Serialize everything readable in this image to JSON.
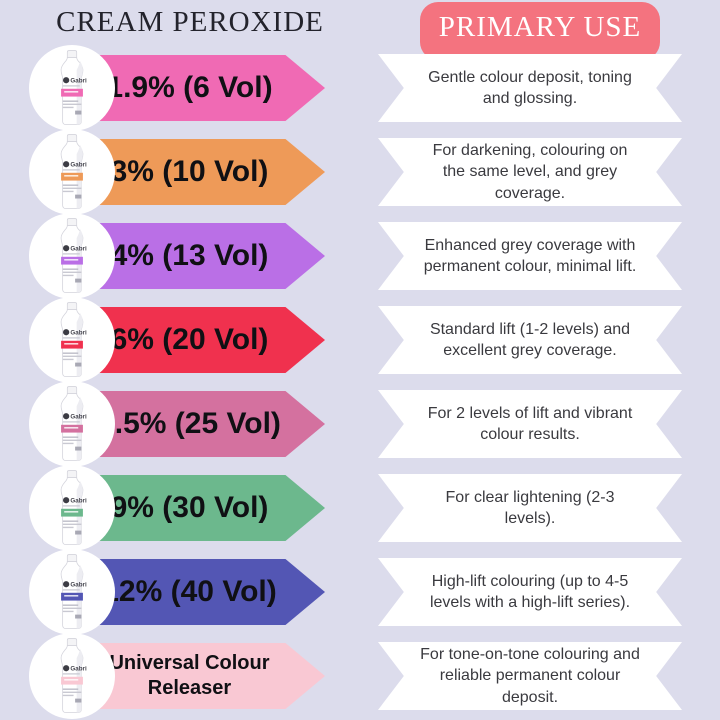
{
  "page": {
    "background": "#dcdcec"
  },
  "header": {
    "left_title": "CREAM PEROXIDE",
    "right_title": "PRIMARY USE",
    "right_title_bg": "#f4737f"
  },
  "bottle": {
    "brand": "Gabri"
  },
  "rows": [
    {
      "label": "1.9% (6 Vol)",
      "use": "Gentle colour deposit, toning and glossing.",
      "color": "#f06ab4"
    },
    {
      "label": "3% (10 Vol)",
      "use": "For darkening, colouring on the same level, and grey coverage.",
      "color": "#ee9a58"
    },
    {
      "label": "4% (13 Vol)",
      "use": "Enhanced grey coverage with permanent colour, minimal lift.",
      "color": "#ba6fe6"
    },
    {
      "label": "6% (20 Vol)",
      "use": "Standard lift (1-2 levels) and excellent grey coverage.",
      "color": "#f0314e"
    },
    {
      "label": "7.5% (25 Vol)",
      "use": "For 2 levels of lift and vibrant colour results.",
      "color": "#d4719f"
    },
    {
      "label": "9% (30 Vol)",
      "use": "For clear lightening (2-3 levels).",
      "color": "#6cb88d"
    },
    {
      "label": "12% (40 Vol)",
      "use": "High-lift colouring (up to 4-5 levels with a high-lift series).",
      "color": "#5356b4"
    },
    {
      "label": "Universal Colour Releaser",
      "use": "For tone-on-tone colouring and reliable permanent colour deposit.",
      "color": "#f9c8d3"
    }
  ]
}
